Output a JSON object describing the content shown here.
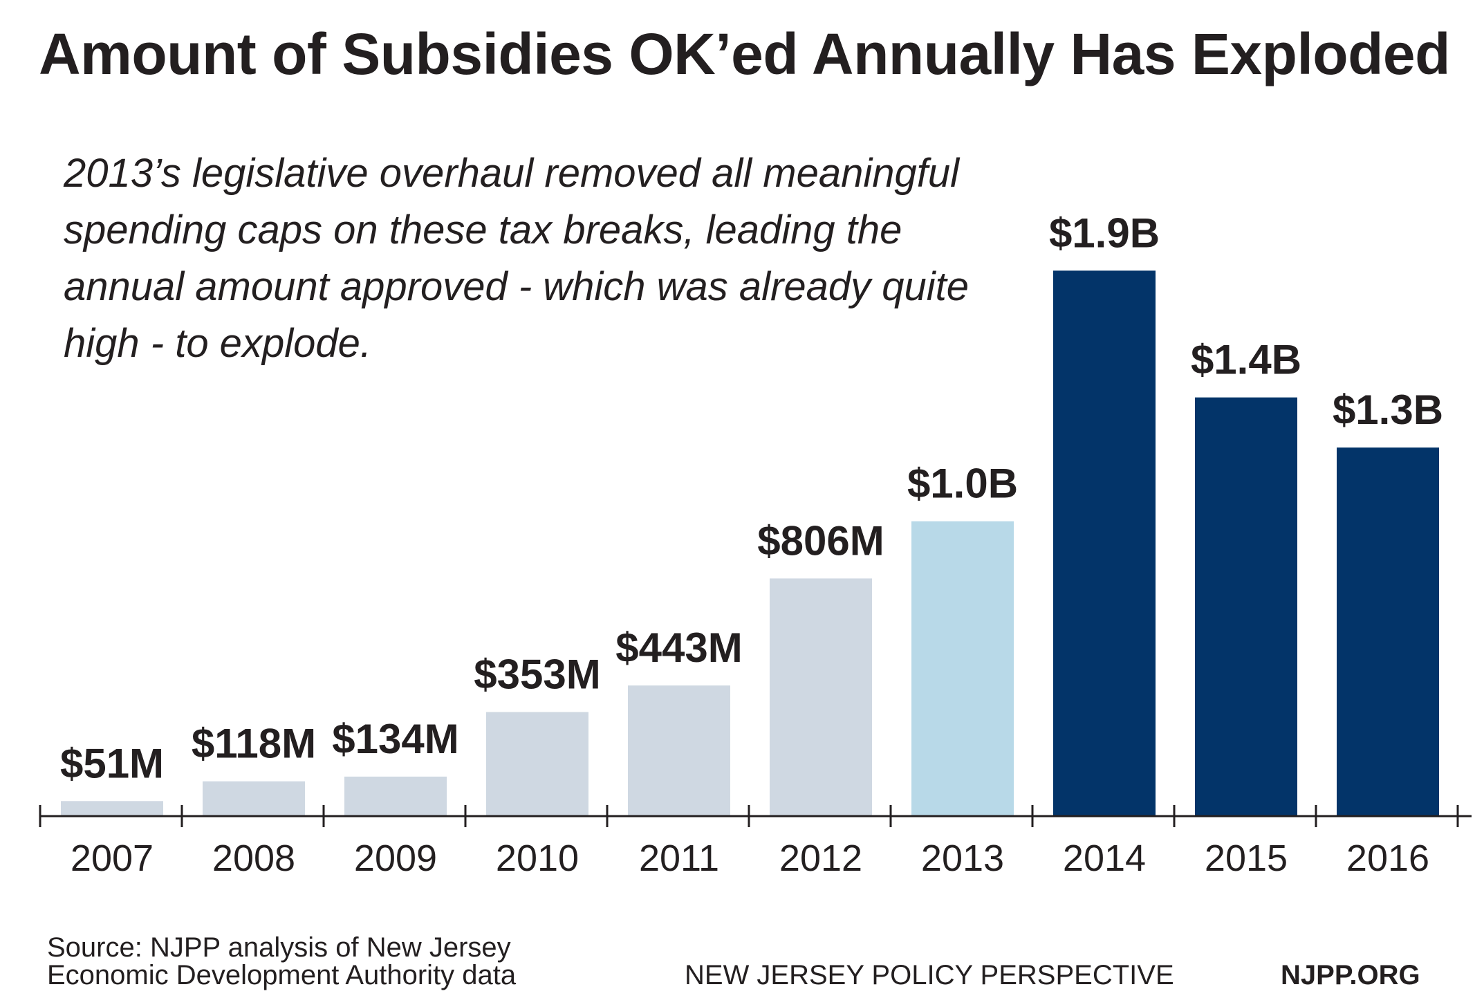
{
  "title": "Amount of Subsidies OK’ed Annually Has Exploded",
  "annotation": "2013’s legislative overhaul removed all meaningful spending caps on these tax breaks, leading the annual amount approved - which was already quite high - to explode.",
  "source_line1": "Source: NJPP analysis of New Jersey",
  "source_line2": "Economic Development Authority data",
  "organization": "NEW JERSEY POLICY PERSPECTIVE",
  "website": "NJPP.ORG",
  "colors": {
    "pre_overhaul": "#cfd8e2",
    "overhaul_year": "#b8d9e8",
    "post_overhaul": "#033469",
    "text": "#231f20"
  },
  "chart_data": {
    "type": "bar",
    "categories": [
      "2007",
      "2008",
      "2009",
      "2010",
      "2011",
      "2012",
      "2013",
      "2014",
      "2015",
      "2016"
    ],
    "values": [
      51,
      118,
      134,
      353,
      443,
      806,
      1000,
      1850,
      1420,
      1250
    ],
    "value_unit": "millions USD",
    "data_labels": [
      "$51M",
      "$118M",
      "$134M",
      "$353M",
      "$443M",
      "$806M",
      "$1.0B",
      "$1.9B",
      "$1.4B",
      "$1.3B"
    ],
    "color_groups": [
      "pre_overhaul",
      "pre_overhaul",
      "pre_overhaul",
      "pre_overhaul",
      "pre_overhaul",
      "pre_overhaul",
      "overhaul_year",
      "post_overhaul",
      "post_overhaul",
      "post_overhaul"
    ],
    "title": "Amount of Subsidies OK’ed Annually Has Exploded",
    "xlabel": "",
    "ylabel": "",
    "ylim": [
      0,
      1900
    ],
    "grid": false,
    "legend": "none"
  }
}
